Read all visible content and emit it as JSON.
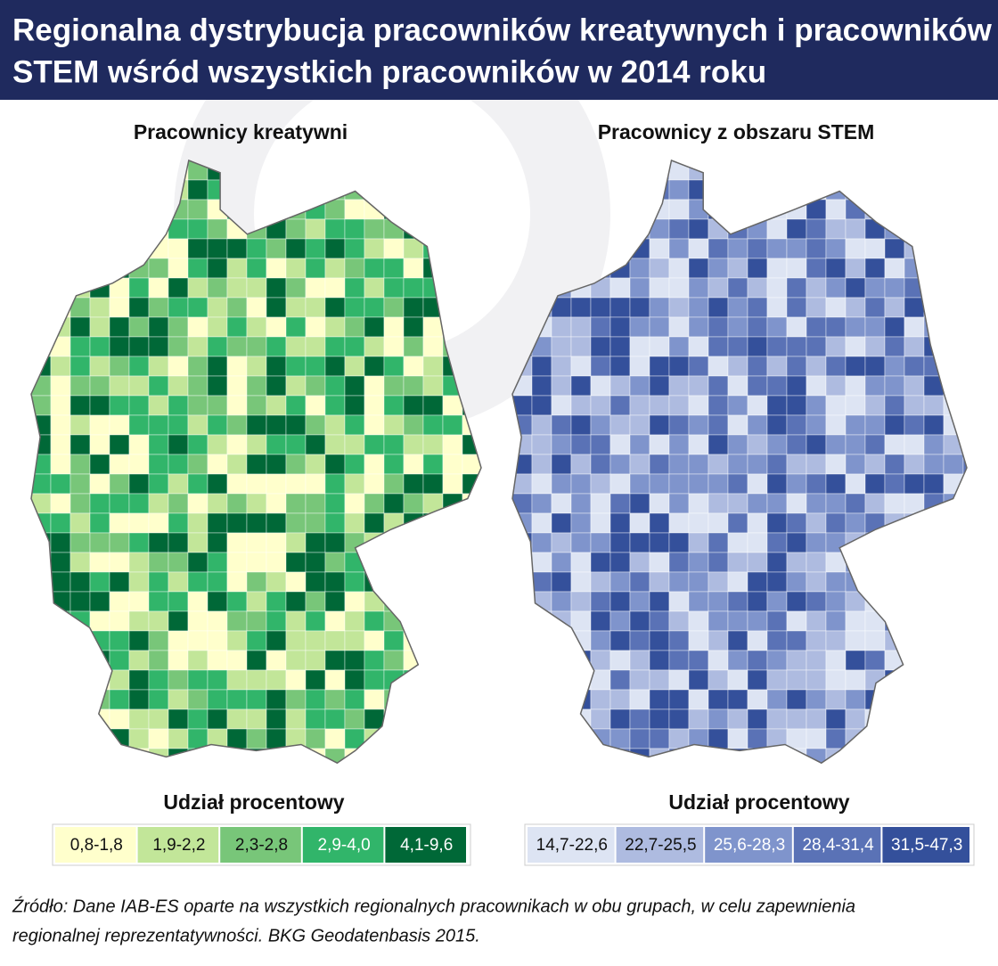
{
  "header": {
    "title_lines": [
      "Regionalna dystrybucja pracowników kreatywnych i pracowników",
      "STEM wśród wszystkich pracowników w 2014 roku"
    ]
  },
  "maps": [
    {
      "title": "Pracownicy kreatywni",
      "legend_title": "Udział procentowy",
      "legend": [
        {
          "label": "0,8-1,8",
          "color": "#ffffcc"
        },
        {
          "label": "1,9-2,2",
          "color": "#c2e699"
        },
        {
          "label": "2,3-2,8",
          "color": "#78c679"
        },
        {
          "label": "2,9-4,0",
          "color": "#31b56a"
        },
        {
          "label": "4,1-9,6",
          "color": "#006837"
        }
      ]
    },
    {
      "title": "Pracownicy z obszaru STEM",
      "legend_title": "Udział procentowy",
      "legend": [
        {
          "label": "14,7-22,6",
          "color": "#dde4f3"
        },
        {
          "label": "22,7-25,5",
          "color": "#aebbe0"
        },
        {
          "label": "25,6-28,3",
          "color": "#7f94cc"
        },
        {
          "label": "28,4-31,4",
          "color": "#5a72b6"
        },
        {
          "label": "31,5-47,3",
          "color": "#34509b"
        }
      ]
    }
  ],
  "source_lines": [
    "Źródło: Dane IAB-ES oparte na wszystkich regionalnych pracownikach w obu grupach, w celu zapewnienia",
    "regionalnej reprezentatywności.  BKG Geodatenbasis 2015."
  ]
}
